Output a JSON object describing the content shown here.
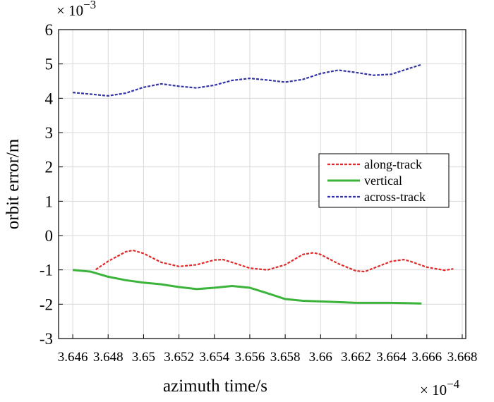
{
  "chart_data": {
    "type": "line",
    "x_label": "azimuth time/s",
    "y_label": "orbit error/m",
    "x_multiplier": {
      "base": "× 10",
      "exponent": "−4"
    },
    "y_multiplier": {
      "base": "× 10",
      "exponent": "−3"
    },
    "xlim": [
      3.6452,
      3.6682
    ],
    "ylim": [
      -3,
      6
    ],
    "xticks": [
      3.646,
      3.648,
      3.65,
      3.652,
      3.654,
      3.656,
      3.658,
      3.66,
      3.662,
      3.664,
      3.666,
      3.668
    ],
    "yticks": [
      -3,
      -2,
      -1,
      0,
      1,
      2,
      3,
      4,
      5,
      6
    ],
    "grid": true,
    "legend": "right",
    "series": [
      {
        "name": "along-track",
        "color": "#e02a2a",
        "dash": true,
        "x": [
          3.6473,
          3.648,
          3.649,
          3.6494,
          3.65,
          3.651,
          3.652,
          3.653,
          3.654,
          3.6545,
          3.655,
          3.656,
          3.657,
          3.658,
          3.659,
          3.6596,
          3.66,
          3.661,
          3.662,
          3.6625,
          3.663,
          3.664,
          3.6647,
          3.665,
          3.666,
          3.667,
          3.6675
        ],
        "values": [
          -0.99,
          -0.75,
          -0.47,
          -0.43,
          -0.52,
          -0.78,
          -0.9,
          -0.85,
          -0.71,
          -0.7,
          -0.78,
          -0.95,
          -1.0,
          -0.85,
          -0.55,
          -0.5,
          -0.55,
          -0.82,
          -1.03,
          -1.05,
          -0.95,
          -0.75,
          -0.7,
          -0.74,
          -0.92,
          -1.01,
          -0.97
        ]
      },
      {
        "name": "vertical",
        "color": "#3cb43c",
        "dash": false,
        "x": [
          3.646,
          3.647,
          3.648,
          3.649,
          3.65,
          3.651,
          3.652,
          3.653,
          3.654,
          3.655,
          3.656,
          3.657,
          3.658,
          3.659,
          3.66,
          3.661,
          3.662,
          3.663,
          3.664,
          3.665,
          3.6657
        ],
        "values": [
          -1.0,
          -1.05,
          -1.2,
          -1.3,
          -1.37,
          -1.42,
          -1.5,
          -1.56,
          -1.52,
          -1.47,
          -1.52,
          -1.68,
          -1.85,
          -1.9,
          -1.92,
          -1.94,
          -1.96,
          -1.96,
          -1.96,
          -1.97,
          -1.98
        ]
      },
      {
        "name": "across-track",
        "color": "#3434a8",
        "dash": true,
        "x": [
          3.646,
          3.647,
          3.648,
          3.649,
          3.65,
          3.651,
          3.652,
          3.653,
          3.654,
          3.655,
          3.656,
          3.657,
          3.658,
          3.659,
          3.66,
          3.661,
          3.662,
          3.663,
          3.664,
          3.665,
          3.6657
        ],
        "values": [
          4.17,
          4.12,
          4.07,
          4.15,
          4.32,
          4.42,
          4.35,
          4.3,
          4.38,
          4.52,
          4.58,
          4.53,
          4.47,
          4.55,
          4.72,
          4.82,
          4.75,
          4.67,
          4.7,
          4.87,
          4.98
        ]
      }
    ]
  }
}
